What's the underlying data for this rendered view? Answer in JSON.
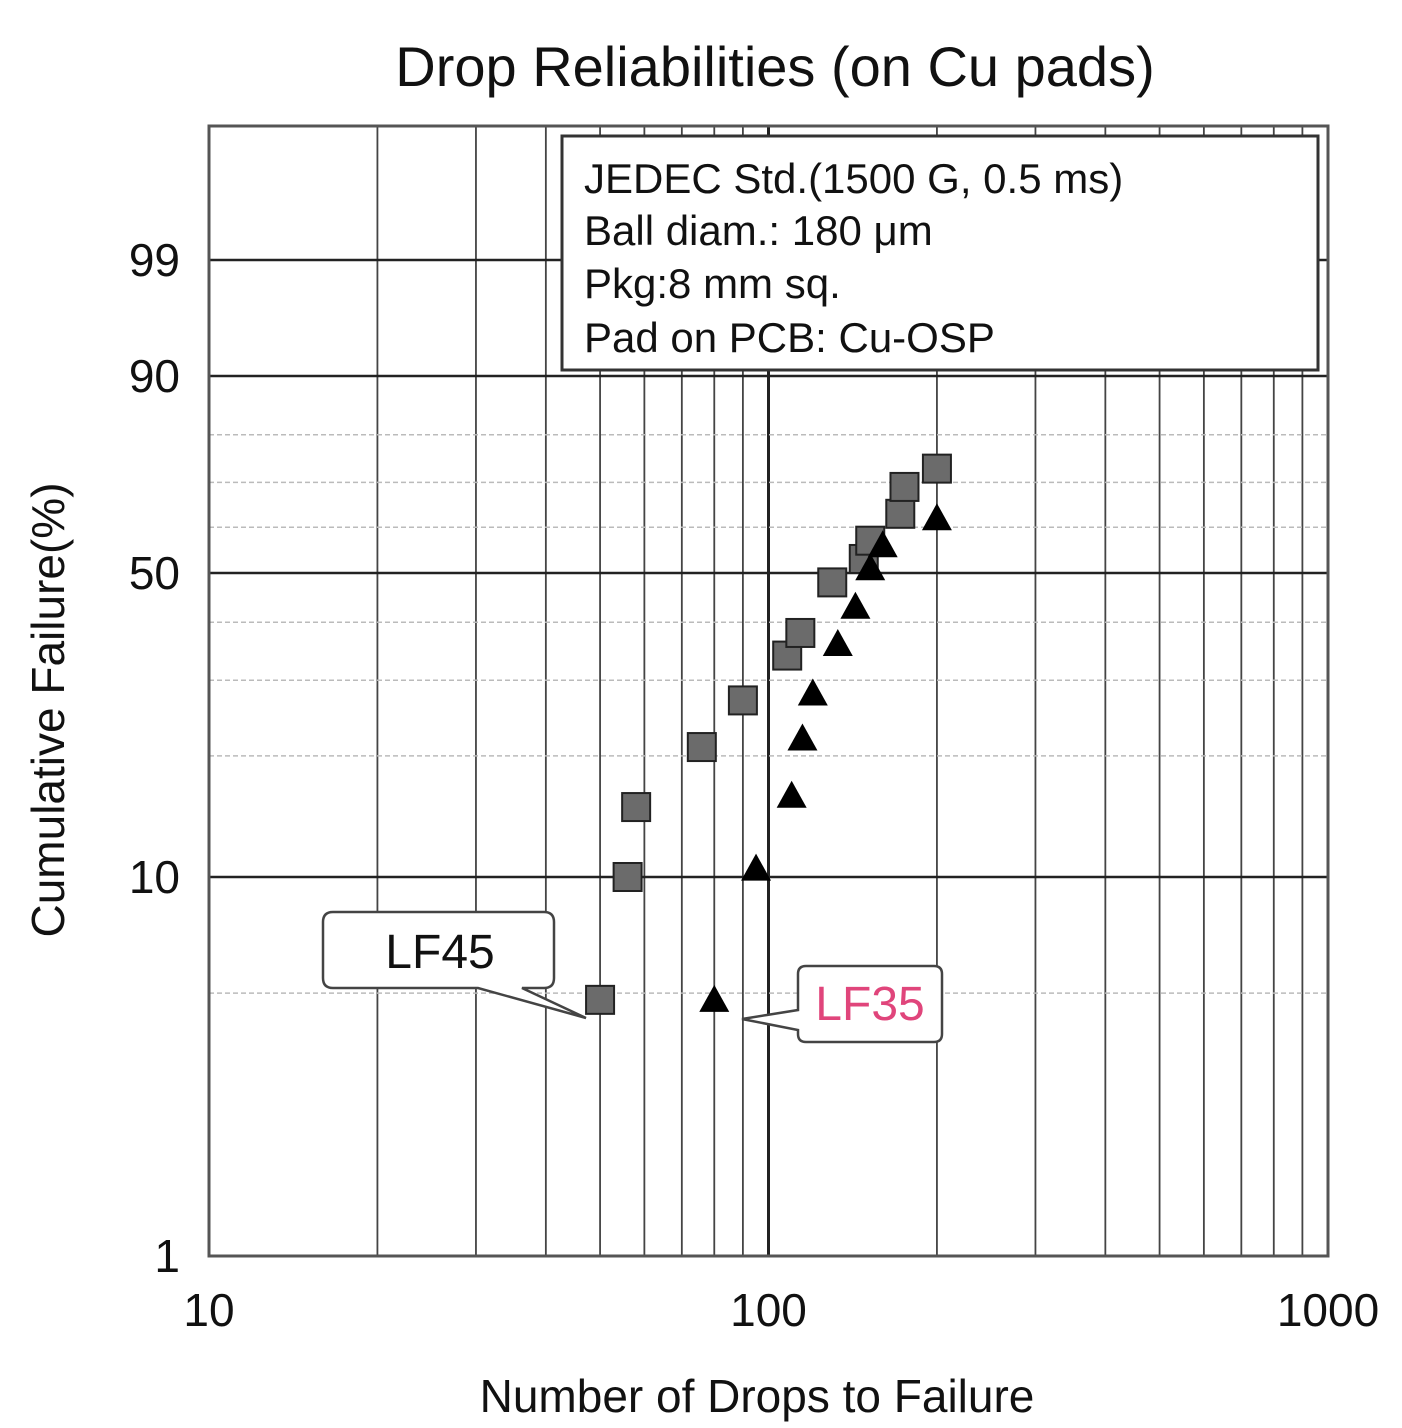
{
  "chart_data": {
    "type": "scatter",
    "title": "Drop Reliabilities (on Cu pads)",
    "xlabel": "Number of Drops to Failure",
    "ylabel": "Cumulative Failure(%)",
    "xscale": "log",
    "yscale": "weibull",
    "xlim": [
      10,
      1000
    ],
    "ylim": [
      1,
      99.99
    ],
    "x_ticks": [
      "10",
      "100",
      "1000"
    ],
    "y_ticks": [
      "1",
      "10",
      "50",
      "90",
      "99"
    ],
    "grid": true,
    "legend_box": {
      "placement": "top-right",
      "lines": [
        "JEDEC Std.(1500 G, 0.5 ms)",
        "Ball diam.: 180 μm",
        "Pkg:8 mm sq.",
        "Pad on PCB: Cu-OSP"
      ]
    },
    "series": [
      {
        "name": "LF45",
        "marker": "square",
        "color": "#6b6b6b",
        "label_color": "#111111",
        "points": [
          {
            "x": 50,
            "y": 4.8
          },
          {
            "x": 56,
            "y": 10
          },
          {
            "x": 58,
            "y": 15
          },
          {
            "x": 76,
            "y": 21
          },
          {
            "x": 90,
            "y": 27
          },
          {
            "x": 108,
            "y": 34
          },
          {
            "x": 114,
            "y": 38
          },
          {
            "x": 130,
            "y": 48
          },
          {
            "x": 148,
            "y": 53
          },
          {
            "x": 152,
            "y": 57
          },
          {
            "x": 172,
            "y": 63
          },
          {
            "x": 175,
            "y": 69
          },
          {
            "x": 200,
            "y": 73
          }
        ]
      },
      {
        "name": "LF35",
        "marker": "triangle",
        "color": "#000000",
        "label_color": "#e0457b",
        "points": [
          {
            "x": 80,
            "y": 4.8
          },
          {
            "x": 95,
            "y": 10.5
          },
          {
            "x": 110,
            "y": 16
          },
          {
            "x": 115,
            "y": 22
          },
          {
            "x": 120,
            "y": 28
          },
          {
            "x": 133,
            "y": 36
          },
          {
            "x": 143,
            "y": 43
          },
          {
            "x": 152,
            "y": 51
          },
          {
            "x": 160,
            "y": 56
          },
          {
            "x": 200,
            "y": 62
          }
        ]
      }
    ]
  }
}
